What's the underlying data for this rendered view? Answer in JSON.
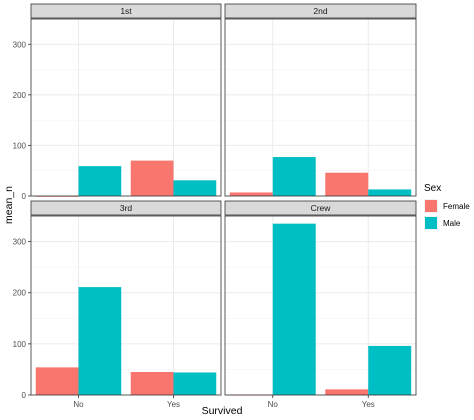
{
  "chart_data": {
    "type": "bar",
    "layout": "facet_wrap",
    "xlabel": "Survived",
    "ylabel": "mean_n",
    "categories": [
      "No",
      "Yes"
    ],
    "ylim": [
      0,
      350
    ],
    "yticks": [
      0,
      100,
      200,
      300
    ],
    "grid": true,
    "legend": {
      "title": "Sex",
      "position": "right",
      "entries": [
        {
          "name": "Female",
          "color": "#F8766D"
        },
        {
          "name": "Male",
          "color": "#00BFC4"
        }
      ]
    },
    "panels": [
      {
        "title": "1st",
        "series": [
          {
            "name": "Female",
            "values": [
              0,
              70
            ]
          },
          {
            "name": "Male",
            "values": [
              59,
              31
            ]
          }
        ]
      },
      {
        "title": "2nd",
        "series": [
          {
            "name": "Female",
            "values": [
              7,
              46
            ]
          },
          {
            "name": "Male",
            "values": [
              77,
              13
            ]
          }
        ]
      },
      {
        "title": "3rd",
        "series": [
          {
            "name": "Female",
            "values": [
              54,
              45
            ]
          },
          {
            "name": "Male",
            "values": [
              211,
              44
            ]
          }
        ]
      },
      {
        "title": "Crew",
        "series": [
          {
            "name": "Female",
            "values": [
              1,
              11
            ]
          },
          {
            "name": "Male",
            "values": [
              335,
              96
            ]
          }
        ]
      }
    ]
  },
  "colors": {
    "female": "#F8766D",
    "male": "#00BFC4",
    "strip_background": "#D9D9D9",
    "grid_major": "#EBEBEB",
    "grid_minor": "#F4F4F4",
    "panel_border": "#333333"
  }
}
